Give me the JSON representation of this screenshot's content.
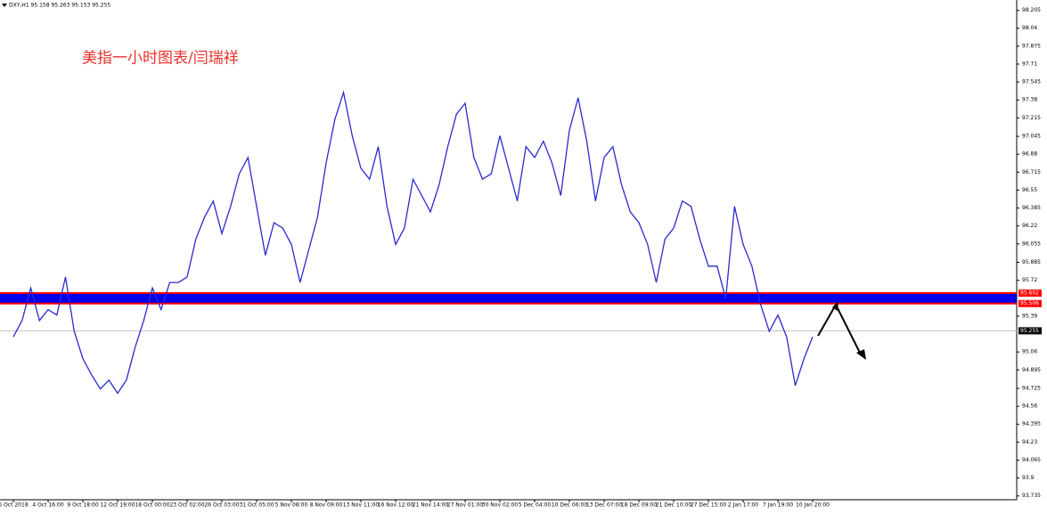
{
  "chart_data": {
    "type": "line",
    "header": "DXY,H1  95.158 95.263 95.153 95.255",
    "title": "美指一小时图表/闫瑞祥",
    "categories": [
      "5 Oct 2018",
      null,
      null,
      null,
      "4 Oct 16:00",
      null,
      null,
      null,
      "9 Oct 18:00",
      null,
      null,
      null,
      "12 Oct 19:00",
      null,
      null,
      null,
      "18 Oct 00:00",
      null,
      null,
      null,
      "23 Oct 02:00",
      null,
      null,
      null,
      "26 Oct 03:00",
      null,
      null,
      null,
      "31 Oct 05:00",
      null,
      null,
      null,
      "5 Nov 08:00",
      null,
      null,
      null,
      "8 Nov 09:00",
      null,
      null,
      null,
      "13 Nov 11:00",
      null,
      null,
      null,
      "16 Nov 12:00",
      null,
      null,
      null,
      "21 Nov 14:00",
      null,
      null,
      null,
      "27 Nov 01:00",
      null,
      null,
      null,
      "30 Nov 02:00",
      null,
      null,
      null,
      "5 Dec 04:00",
      null,
      null,
      null,
      "10 Dec 06:00",
      null,
      null,
      null,
      "13 Dec 07:00",
      null,
      null,
      null,
      "18 Dec 09:00",
      null,
      null,
      null,
      "21 Dec 10:00",
      null,
      null,
      null,
      "27 Dec 15:00",
      null,
      null,
      null,
      "2 Jan 17:00",
      null,
      null,
      null,
      "7 Jan 19:00",
      null,
      null,
      null,
      "10 Jan 20:00"
    ],
    "series": [
      {
        "color": "#2a2ad0",
        "values": [
          95.2,
          95.35,
          95.65,
          95.35,
          95.45,
          95.4,
          95.75,
          95.25,
          95.0,
          94.85,
          94.72,
          94.8,
          94.68,
          94.8,
          95.1,
          95.35,
          95.65,
          95.45,
          95.7,
          95.7,
          95.75,
          96.1,
          96.3,
          96.45,
          96.15,
          96.4,
          96.7,
          96.85,
          96.4,
          95.95,
          96.25,
          96.2,
          96.05,
          95.7,
          96.0,
          96.3,
          96.8,
          97.2,
          97.45,
          97.05,
          96.75,
          96.65,
          96.95,
          96.4,
          96.05,
          96.2,
          96.65,
          96.5,
          96.35,
          96.6,
          96.95,
          97.25,
          97.35,
          96.85,
          96.65,
          96.7,
          97.05,
          96.75,
          96.45,
          96.95,
          96.85,
          97.0,
          96.8,
          96.5,
          97.1,
          97.4,
          97.0,
          96.45,
          96.85,
          96.95,
          96.6,
          96.35,
          96.25,
          96.05,
          95.7,
          96.1,
          96.2,
          96.45,
          96.4,
          96.1,
          95.85,
          95.85,
          95.55,
          96.4,
          96.05,
          95.85,
          95.5,
          95.25,
          95.4,
          95.2,
          94.75,
          95.0,
          95.2
        ]
      }
    ],
    "ylim": [
      93.7,
      98.3
    ],
    "yticks": [
      98.205,
      98.04,
      97.875,
      97.71,
      97.545,
      97.38,
      97.215,
      97.045,
      96.88,
      96.715,
      96.55,
      96.385,
      96.22,
      96.055,
      95.885,
      95.72,
      95.39,
      95.06,
      94.895,
      94.725,
      94.56,
      94.395,
      94.23,
      94.065,
      93.9,
      93.735
    ],
    "zone": {
      "top": 95.602,
      "bottom": 95.506,
      "color": "#0000ee",
      "border": "#ff0000"
    },
    "current_price": 95.255
  }
}
